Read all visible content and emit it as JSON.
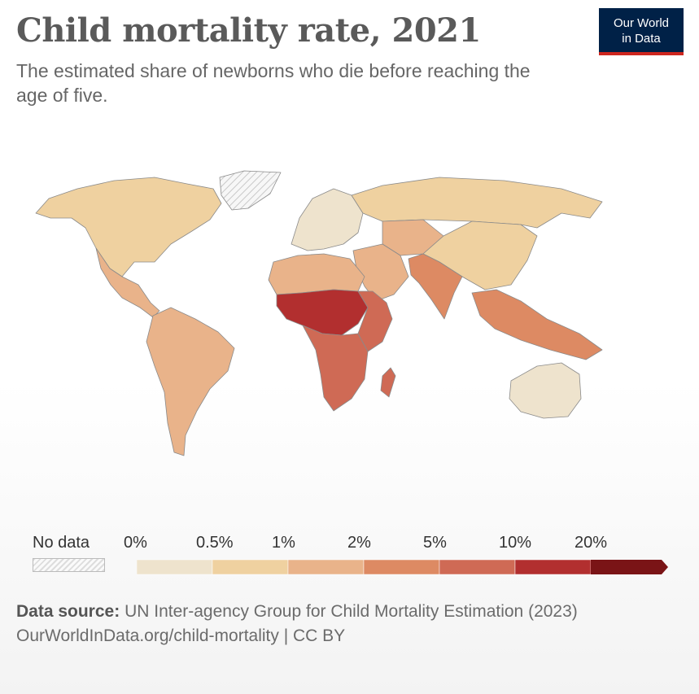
{
  "header": {
    "title": "Child mortality rate, 2021",
    "subtitle": "The estimated share of newborns who die before reaching the age of five."
  },
  "logo": {
    "line1": "Our World",
    "line2": "in Data"
  },
  "legend": {
    "no_data_label": "No data",
    "ticks": [
      "0%",
      "0.5%",
      "1%",
      "2%",
      "5%",
      "10%",
      "20%"
    ],
    "bins": [
      {
        "color": "#eee3cd"
      },
      {
        "color": "#efd1a0"
      },
      {
        "color": "#e9b38a"
      },
      {
        "color": "#dd8a63"
      },
      {
        "color": "#cf6a55"
      },
      {
        "color": "#b22f2f"
      },
      {
        "color": "#7a1416"
      }
    ]
  },
  "map": {
    "regions": [
      {
        "name": "North America",
        "bin": 1
      },
      {
        "name": "Central America",
        "bin": 2
      },
      {
        "name": "South America",
        "bin": 2
      },
      {
        "name": "Greenland",
        "bin": -1
      },
      {
        "name": "Europe",
        "bin": 0
      },
      {
        "name": "Russia",
        "bin": 1
      },
      {
        "name": "Central Asia",
        "bin": 2
      },
      {
        "name": "China",
        "bin": 1
      },
      {
        "name": "Middle East",
        "bin": 2
      },
      {
        "name": "South Asia",
        "bin": 3
      },
      {
        "name": "Southeast Asia",
        "bin": 3
      },
      {
        "name": "North Africa",
        "bin": 2
      },
      {
        "name": "Sahel & Central Africa",
        "bin": 5
      },
      {
        "name": "Sub-Saharan Africa",
        "bin": 4
      },
      {
        "name": "East Africa",
        "bin": 4
      },
      {
        "name": "Madagascar",
        "bin": 4
      },
      {
        "name": "Australia",
        "bin": 0
      }
    ]
  },
  "footer": {
    "source_label": "Data source:",
    "source_text": "UN Inter-agency Group for Child Mortality Estimation (2023)",
    "url": "OurWorldInData.org/child-mortality | CC BY"
  }
}
